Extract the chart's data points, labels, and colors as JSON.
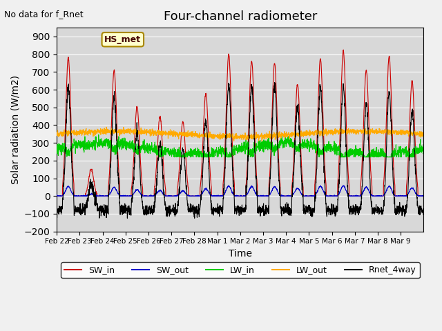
{
  "title": "Four-channel radiometer",
  "xlabel": "Time",
  "ylabel": "Solar radiation (W/m2)",
  "annotation_text": "No data for f_Rnet",
  "station_label": "HS_met",
  "ylim": [
    -200,
    950
  ],
  "yticks": [
    -200,
    -100,
    0,
    100,
    200,
    300,
    400,
    500,
    600,
    700,
    800,
    900
  ],
  "x_tick_labels": [
    "Feb 22",
    "Feb 23",
    "Feb 24",
    "Feb 25",
    "Feb 26",
    "Feb 27",
    "Feb 28",
    "Mar 1",
    "Mar 2",
    "Mar 3",
    "Mar 4",
    "Mar 5",
    "Mar 6",
    "Mar 7",
    "Mar 8",
    "Mar 9"
  ],
  "n_days": 16,
  "fig_facecolor": "#f0f0f0",
  "plot_bg_color": "#d8d8d8",
  "SW_in_color": "#cc0000",
  "SW_out_color": "#0000cc",
  "LW_in_color": "#00cc00",
  "LW_out_color": "#ffaa00",
  "Rnet_color": "#000000",
  "sw_in_peaks": [
    780,
    150,
    710,
    505,
    450,
    420,
    580,
    800,
    760,
    750,
    630,
    775,
    820,
    710,
    790,
    650
  ]
}
